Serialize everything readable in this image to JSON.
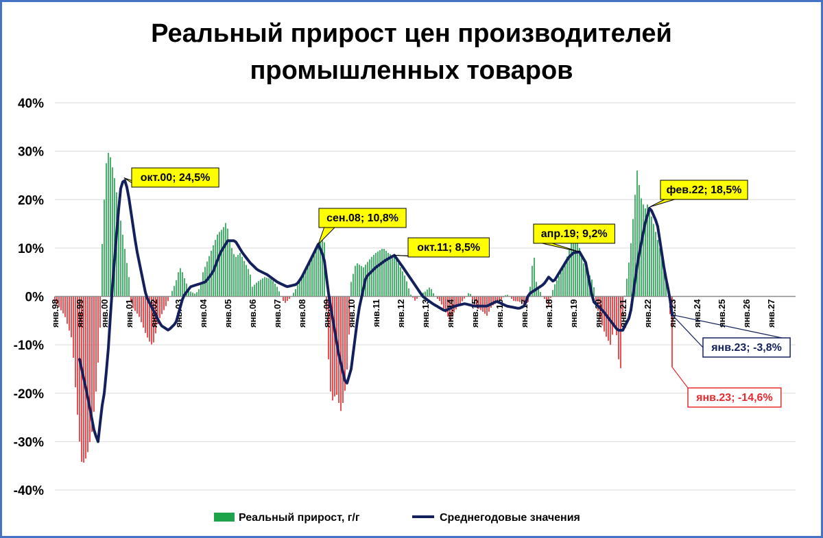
{
  "chart_data": {
    "type": "bar",
    "title_line1": "Реальный прирост цен производителей",
    "title_line2": "промышленных товаров",
    "ylim": [
      -40,
      40
    ],
    "y_ticks": [
      "40%",
      "30%",
      "20%",
      "10%",
      "0%",
      "-10%",
      "-20%",
      "-30%",
      "-40%"
    ],
    "x_ticks": [
      "янв.98",
      "янв.99",
      "янв.00",
      "янв.01",
      "янв.02",
      "янв.03",
      "янв.04",
      "янв.05",
      "янв.06",
      "янв.07",
      "янв.08",
      "янв.09",
      "янв.10",
      "янв.11",
      "янв.12",
      "янв.13",
      "янв.14",
      "янв.15",
      "янв.16",
      "янв.17",
      "янв.18",
      "янв.19",
      "янв.20",
      "янв.21",
      "янв.22",
      "янв.23",
      "янв.24",
      "янв.25",
      "янв.26",
      "янв.27"
    ],
    "grid": "horizontal",
    "legend_position": "bottom",
    "colors": {
      "positive": "#1ea34a",
      "negative": "#e8292e",
      "average": "#13205c",
      "callout_fill": "#ffff00",
      "frame": "#4472c4"
    },
    "series": [
      {
        "name": "Реальный прирост, г/г",
        "type": "bar",
        "x": [
          1998.0,
          2023.0
        ],
        "knots": [
          [
            1998.0,
            -1
          ],
          [
            1998.4,
            -4
          ],
          [
            1998.7,
            -9
          ],
          [
            1998.85,
            -20
          ],
          [
            1999.0,
            -30
          ],
          [
            1999.1,
            -35
          ],
          [
            1999.3,
            -33
          ],
          [
            1999.5,
            -28
          ],
          [
            1999.7,
            -18
          ],
          [
            1999.85,
            -5
          ],
          [
            1999.9,
            9
          ],
          [
            2000.0,
            20
          ],
          [
            2000.1,
            29
          ],
          [
            2000.2,
            30
          ],
          [
            2000.4,
            25
          ],
          [
            2000.6,
            18
          ],
          [
            2000.8,
            11
          ],
          [
            2001.0,
            4
          ],
          [
            2001.1,
            -2
          ],
          [
            2001.4,
            -4
          ],
          [
            2001.7,
            -8
          ],
          [
            2001.9,
            -10
          ],
          [
            2002.0,
            -9.5
          ],
          [
            2002.2,
            -5
          ],
          [
            2002.5,
            -2
          ],
          [
            2002.7,
            0.5
          ],
          [
            2002.9,
            3
          ],
          [
            2003.0,
            5
          ],
          [
            2003.1,
            6
          ],
          [
            2003.3,
            3
          ],
          [
            2003.5,
            1
          ],
          [
            2003.7,
            0.5
          ],
          [
            2003.9,
            2
          ],
          [
            2004.0,
            5
          ],
          [
            2004.3,
            9
          ],
          [
            2004.6,
            13
          ],
          [
            2004.8,
            14
          ],
          [
            2004.95,
            15.5
          ],
          [
            2005.1,
            11
          ],
          [
            2005.3,
            8
          ],
          [
            2005.5,
            9
          ],
          [
            2005.7,
            7
          ],
          [
            2005.9,
            5
          ],
          [
            2006.0,
            2
          ],
          [
            2006.2,
            3
          ],
          [
            2006.5,
            4
          ],
          [
            2006.8,
            3.5
          ],
          [
            2007.0,
            2
          ],
          [
            2007.3,
            -1.5
          ],
          [
            2007.5,
            -0.5
          ],
          [
            2007.7,
            1
          ],
          [
            2008.0,
            4
          ],
          [
            2008.2,
            6
          ],
          [
            2008.4,
            8
          ],
          [
            2008.6,
            10
          ],
          [
            2008.8,
            12
          ],
          [
            2008.9,
            14
          ],
          [
            2009.0,
            -3
          ],
          [
            2009.1,
            -15
          ],
          [
            2009.2,
            -22
          ],
          [
            2009.4,
            -20
          ],
          [
            2009.6,
            -24
          ],
          [
            2009.8,
            -18
          ],
          [
            2009.95,
            -5
          ],
          [
            2010.0,
            3
          ],
          [
            2010.2,
            7
          ],
          [
            2010.5,
            6
          ],
          [
            2010.8,
            8
          ],
          [
            2011.0,
            9
          ],
          [
            2011.3,
            10
          ],
          [
            2011.5,
            9
          ],
          [
            2011.8,
            8
          ],
          [
            2012.0,
            6
          ],
          [
            2012.2,
            4
          ],
          [
            2012.4,
            0.5
          ],
          [
            2012.6,
            -1
          ],
          [
            2012.8,
            0.5
          ],
          [
            2013.0,
            1
          ],
          [
            2013.2,
            2
          ],
          [
            2013.4,
            0
          ],
          [
            2013.6,
            -1
          ],
          [
            2013.8,
            -3
          ],
          [
            2014.0,
            -5
          ],
          [
            2014.2,
            -3
          ],
          [
            2014.5,
            -1
          ],
          [
            2014.8,
            1
          ],
          [
            2015.0,
            -2
          ],
          [
            2015.3,
            -3
          ],
          [
            2015.5,
            -4
          ],
          [
            2015.7,
            -2
          ],
          [
            2016.0,
            -1
          ],
          [
            2016.3,
            0.5
          ],
          [
            2016.6,
            -1
          ],
          [
            2016.8,
            -1
          ],
          [
            2017.0,
            -2
          ],
          [
            2017.2,
            -1
          ],
          [
            2017.3,
            5
          ],
          [
            2017.4,
            9
          ],
          [
            2017.5,
            3
          ],
          [
            2017.7,
            0.5
          ],
          [
            2017.9,
            -1
          ],
          [
            2018.0,
            -2
          ],
          [
            2018.2,
            2
          ],
          [
            2018.4,
            4
          ],
          [
            2018.6,
            6
          ],
          [
            2018.8,
            9
          ],
          [
            2019.0,
            14
          ],
          [
            2019.2,
            11
          ],
          [
            2019.4,
            7
          ],
          [
            2019.6,
            5
          ],
          [
            2019.8,
            3
          ],
          [
            2019.95,
            -2
          ],
          [
            2020.1,
            -5
          ],
          [
            2020.3,
            -8
          ],
          [
            2020.5,
            -10
          ],
          [
            2020.7,
            -5
          ],
          [
            2020.9,
            -17
          ],
          [
            2021.0,
            -4
          ],
          [
            2021.1,
            1
          ],
          [
            2021.3,
            9
          ],
          [
            2021.5,
            21
          ],
          [
            2021.6,
            27
          ],
          [
            2021.7,
            21
          ],
          [
            2021.9,
            18
          ],
          [
            2022.0,
            19
          ],
          [
            2022.2,
            16
          ],
          [
            2022.4,
            12
          ],
          [
            2022.6,
            8
          ],
          [
            2022.8,
            2
          ],
          [
            2022.85,
            -1
          ],
          [
            2022.95,
            -5
          ],
          [
            2023.0,
            -14.6
          ]
        ]
      },
      {
        "name": "Среднегодовые значения",
        "type": "line",
        "x": [
          1999.0,
          2023.0
        ],
        "knots": [
          [
            1999.0,
            -13
          ],
          [
            1999.3,
            -20
          ],
          [
            1999.6,
            -28
          ],
          [
            1999.75,
            -30
          ],
          [
            1999.9,
            -23
          ],
          [
            2000.0,
            -20
          ],
          [
            2000.15,
            -12
          ],
          [
            2000.3,
            0
          ],
          [
            2000.5,
            13
          ],
          [
            2000.65,
            22
          ],
          [
            2000.8,
            24.5
          ],
          [
            2000.95,
            22
          ],
          [
            2001.3,
            10
          ],
          [
            2001.7,
            0
          ],
          [
            2002.0,
            -3
          ],
          [
            2002.3,
            -6
          ],
          [
            2002.6,
            -7
          ],
          [
            2002.9,
            -5.5
          ],
          [
            2003.2,
            0
          ],
          [
            2003.5,
            2
          ],
          [
            2003.8,
            2.5
          ],
          [
            2004.1,
            3
          ],
          [
            2004.4,
            5
          ],
          [
            2004.7,
            9
          ],
          [
            2005.0,
            11.5
          ],
          [
            2005.3,
            11.5
          ],
          [
            2005.6,
            9
          ],
          [
            2005.9,
            7
          ],
          [
            2006.2,
            5.5
          ],
          [
            2006.6,
            4.5
          ],
          [
            2007.0,
            3
          ],
          [
            2007.4,
            2
          ],
          [
            2007.8,
            2.5
          ],
          [
            2008.0,
            4
          ],
          [
            2008.3,
            7
          ],
          [
            2008.67,
            10.8
          ],
          [
            2008.9,
            8
          ],
          [
            2009.1,
            0
          ],
          [
            2009.5,
            -12
          ],
          [
            2009.8,
            -18.5
          ],
          [
            2010.0,
            -15
          ],
          [
            2010.3,
            -3
          ],
          [
            2010.6,
            4
          ],
          [
            2011.0,
            6
          ],
          [
            2011.4,
            7.5
          ],
          [
            2011.75,
            8.5
          ],
          [
            2012.1,
            6
          ],
          [
            2012.5,
            3
          ],
          [
            2012.9,
            0
          ],
          [
            2013.3,
            -1.5
          ],
          [
            2013.8,
            -3
          ],
          [
            2014.2,
            -2
          ],
          [
            2014.6,
            -1.5
          ],
          [
            2015.0,
            -2
          ],
          [
            2015.5,
            -2
          ],
          [
            2015.9,
            -1
          ],
          [
            2016.3,
            -2
          ],
          [
            2016.8,
            -2.5
          ],
          [
            2017.0,
            -2
          ],
          [
            2017.2,
            0.5
          ],
          [
            2017.5,
            1.5
          ],
          [
            2017.8,
            2.5
          ],
          [
            2018.0,
            4
          ],
          [
            2018.2,
            3
          ],
          [
            2018.5,
            5.5
          ],
          [
            2018.8,
            8
          ],
          [
            2019.0,
            9
          ],
          [
            2019.25,
            9.2
          ],
          [
            2019.5,
            7
          ],
          [
            2019.8,
            -1
          ],
          [
            2020.2,
            -3
          ],
          [
            2020.5,
            -5
          ],
          [
            2020.8,
            -7
          ],
          [
            2021.0,
            -7
          ],
          [
            2021.3,
            -4
          ],
          [
            2021.6,
            7
          ],
          [
            2021.9,
            15
          ],
          [
            2022.1,
            18.5
          ],
          [
            2022.4,
            15
          ],
          [
            2022.7,
            5
          ],
          [
            2022.9,
            0
          ],
          [
            2023.0,
            -3.8
          ]
        ]
      }
    ],
    "annotations": [
      {
        "text": "окт.00; 24,5%",
        "x": 2000.8,
        "y": 24.5,
        "style": "yellow"
      },
      {
        "text": "сен.08; 10,8%",
        "x": 2008.67,
        "y": 10.8,
        "style": "yellow"
      },
      {
        "text": "окт.11; 8,5%",
        "x": 2011.75,
        "y": 8.5,
        "style": "yellow"
      },
      {
        "text": "апр.19; 9,2%",
        "x": 2019.25,
        "y": 9.2,
        "style": "yellow"
      },
      {
        "text": "фев.22; 18,5%",
        "x": 2022.1,
        "y": 18.5,
        "style": "yellow"
      },
      {
        "text": "янв.23; -3,8%",
        "x": 2023.0,
        "y": -3.8,
        "style": "navy"
      },
      {
        "text": "янв.23; -14,6%",
        "x": 2023.0,
        "y": -14.6,
        "style": "red"
      }
    ]
  },
  "legend": {
    "bar_label": "Реальный прирост, г/г",
    "line_label": "Среднегодовые значения"
  }
}
